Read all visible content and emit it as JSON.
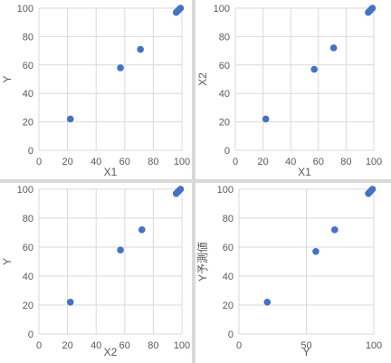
{
  "chart_data": [
    {
      "type": "scatter",
      "xlabel": "X1",
      "ylabel": "Y",
      "xlim": [
        0,
        100
      ],
      "ylim": [
        0,
        100
      ],
      "xticks": [
        0,
        20,
        40,
        60,
        80,
        100
      ],
      "yticks": [
        0,
        20,
        40,
        60,
        80,
        100
      ],
      "grid": true,
      "marker_color": "#4472C4",
      "x": [
        22,
        57,
        71,
        96,
        97,
        98,
        99
      ],
      "y": [
        22,
        58,
        71,
        97,
        98,
        99,
        100
      ]
    },
    {
      "type": "scatter",
      "xlabel": "X1",
      "ylabel": "X2",
      "xlim": [
        0,
        100
      ],
      "ylim": [
        0,
        100
      ],
      "xticks": [
        0,
        20,
        40,
        60,
        80,
        100
      ],
      "yticks": [
        0,
        20,
        40,
        60,
        80,
        100
      ],
      "grid": true,
      "marker_color": "#4472C4",
      "x": [
        22,
        57,
        71,
        96,
        97,
        98,
        99
      ],
      "y": [
        22,
        57,
        72,
        97,
        98,
        99,
        100
      ]
    },
    {
      "type": "scatter",
      "xlabel": "X2",
      "ylabel": "Y",
      "xlim": [
        0,
        100
      ],
      "ylim": [
        0,
        100
      ],
      "xticks": [
        0,
        20,
        40,
        60,
        80,
        100
      ],
      "yticks": [
        0,
        20,
        40,
        60,
        80,
        100
      ],
      "grid": true,
      "marker_color": "#4472C4",
      "x": [
        22,
        57,
        72,
        96,
        97,
        98,
        99
      ],
      "y": [
        22,
        58,
        72,
        97,
        98,
        99,
        100
      ]
    },
    {
      "type": "scatter",
      "xlabel": "Y",
      "ylabel": "Y予測値",
      "xlim": [
        0,
        100
      ],
      "ylim": [
        0,
        100
      ],
      "xticks": [
        0,
        50,
        100
      ],
      "yticks": [
        0,
        20,
        40,
        60,
        80,
        100
      ],
      "grid": true,
      "marker_color": "#4472C4",
      "x": [
        21,
        57,
        71,
        96,
        97,
        98,
        99
      ],
      "y": [
        22,
        57,
        72,
        97,
        98,
        99,
        100
      ]
    }
  ]
}
